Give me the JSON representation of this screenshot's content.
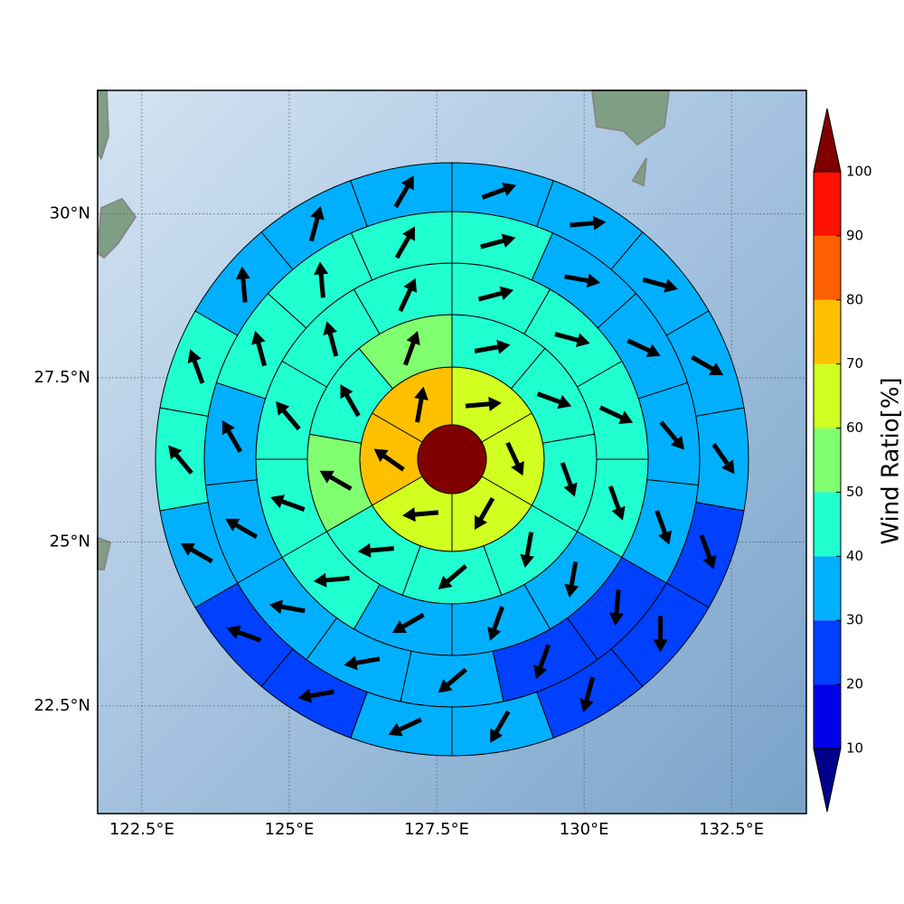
{
  "chart_data": {
    "type": "polar_map",
    "xlim": [
      121.75,
      133.77
    ],
    "ylim": [
      20.86,
      31.88
    ],
    "xticks": [
      {
        "value": 122.5,
        "label": "122.5°E"
      },
      {
        "value": 125,
        "label": "125°E"
      },
      {
        "value": 127.5,
        "label": "127.5°E"
      },
      {
        "value": 130,
        "label": "130°E"
      },
      {
        "value": 132.5,
        "label": "132.5°E"
      }
    ],
    "yticks": [
      {
        "value": 22.5,
        "label": "22.5°N"
      },
      {
        "value": 25,
        "label": "25°N"
      },
      {
        "value": 27.5,
        "label": "27.5°N"
      },
      {
        "value": 30,
        "label": "30°N"
      }
    ],
    "grid": true,
    "center_value": 105,
    "rings": [
      {
        "values": [
          65,
          65,
          65,
          65,
          75,
          75
        ],
        "directions": [
          85,
          155,
          210,
          265,
          305,
          10
        ]
      },
      {
        "values": [
          45,
          45,
          45,
          45,
          45,
          45,
          55,
          45,
          55
        ],
        "directions": [
          80,
          110,
          160,
          190,
          230,
          265,
          300,
          330,
          20
        ]
      },
      {
        "values": [
          45,
          45,
          45,
          45,
          35,
          35,
          35,
          45,
          45,
          45,
          45,
          45
        ],
        "directions": [
          75,
          105,
          115,
          160,
          190,
          200,
          240,
          265,
          290,
          320,
          345,
          25
        ]
      },
      {
        "values": [
          45,
          35,
          35,
          35,
          35,
          25,
          25,
          35,
          35,
          35,
          35,
          35,
          45,
          45,
          45
        ],
        "directions": [
          75,
          100,
          115,
          140,
          160,
          185,
          200,
          230,
          260,
          280,
          300,
          330,
          345,
          355,
          30
        ]
      },
      {
        "values": [
          35,
          35,
          35,
          35,
          35,
          25,
          25,
          25,
          35,
          35,
          25,
          25,
          35,
          45,
          45,
          35,
          35,
          35
        ],
        "directions": [
          70,
          85,
          105,
          120,
          145,
          160,
          180,
          195,
          210,
          245,
          260,
          290,
          300,
          320,
          340,
          355,
          15,
          30
        ]
      }
    ],
    "colorbar": {
      "label": "Wind Ratio[%]",
      "ticks": [
        10,
        20,
        30,
        40,
        50,
        60,
        70,
        80,
        90,
        100
      ],
      "colors": [
        "#0000e8",
        "#0040ff",
        "#00b0ff",
        "#20ffd0",
        "#80ff70",
        "#d0ff20",
        "#ffc000",
        "#ff6000",
        "#ff1000"
      ],
      "under_color": "#00008b",
      "over_color": "#800000"
    }
  }
}
